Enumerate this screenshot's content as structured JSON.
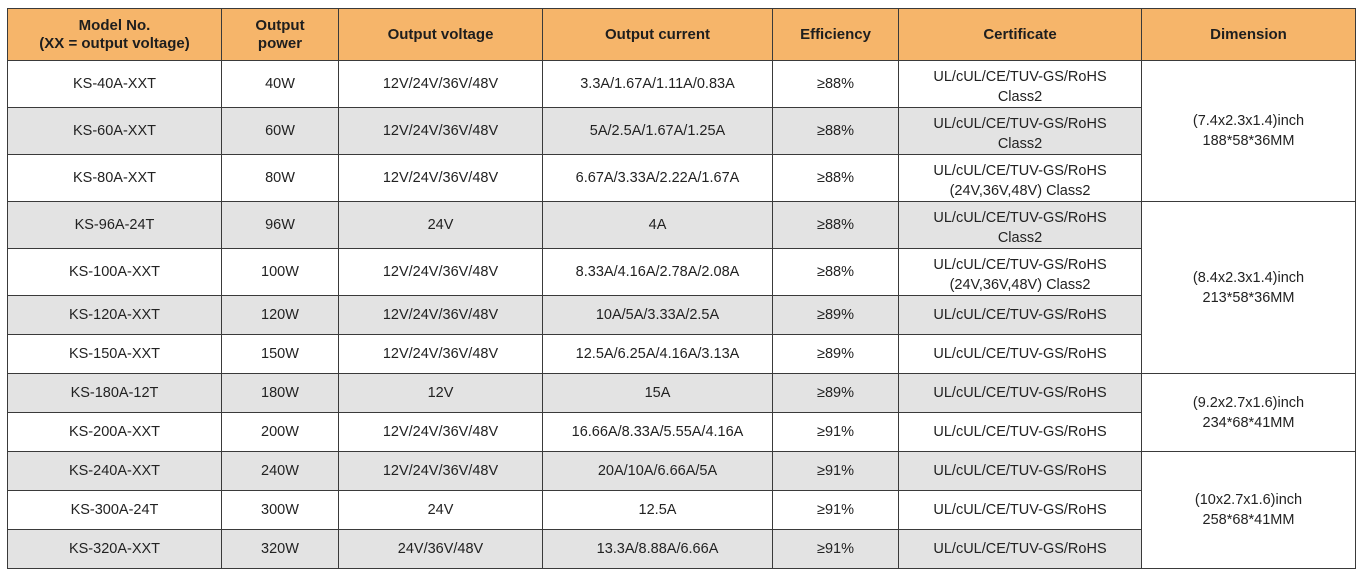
{
  "header": {
    "model_line1": "Model No.",
    "model_line2": "(XX = output voltage)",
    "power_line1": "Output",
    "power_line2": "power",
    "voltage": "Output voltage",
    "current": "Output current",
    "efficiency": "Efficiency",
    "certificate": "Certificate",
    "dimension": "Dimension"
  },
  "colors": {
    "header_bg": "#f6b56a",
    "alt_row_bg": "#e3e3e3"
  },
  "rows": [
    {
      "model": "KS-40A-XXT",
      "power": "40W",
      "voltage": "12V/24V/36V/48V",
      "current": "3.3A/1.67A/1.11A/0.83A",
      "efficiency": "≥88%",
      "cert": "UL/cUL/CE/TUV-GS/RoHS",
      "cert2": "Class2"
    },
    {
      "model": "KS-60A-XXT",
      "power": "60W",
      "voltage": "12V/24V/36V/48V",
      "current": "5A/2.5A/1.67A/1.25A",
      "efficiency": "≥88%",
      "cert": "UL/cUL/CE/TUV-GS/RoHS",
      "cert2": "Class2"
    },
    {
      "model": "KS-80A-XXT",
      "power": "80W",
      "voltage": "12V/24V/36V/48V",
      "current": "6.67A/3.33A/2.22A/1.67A",
      "efficiency": "≥88%",
      "cert": "UL/cUL/CE/TUV-GS/RoHS",
      "cert2": "(24V,36V,48V) Class2"
    },
    {
      "model": "KS-96A-24T",
      "power": "96W",
      "voltage": "24V",
      "current": "4A",
      "efficiency": "≥88%",
      "cert": "UL/cUL/CE/TUV-GS/RoHS",
      "cert2": "Class2"
    },
    {
      "model": "KS-100A-XXT",
      "power": "100W",
      "voltage": "12V/24V/36V/48V",
      "current": "8.33A/4.16A/2.78A/2.08A",
      "efficiency": "≥88%",
      "cert": "UL/cUL/CE/TUV-GS/RoHS",
      "cert2": "(24V,36V,48V) Class2"
    },
    {
      "model": "KS-120A-XXT",
      "power": "120W",
      "voltage": "12V/24V/36V/48V",
      "current": "10A/5A/3.33A/2.5A",
      "efficiency": "≥89%",
      "cert": "UL/cUL/CE/TUV-GS/RoHS"
    },
    {
      "model": "KS-150A-XXT",
      "power": "150W",
      "voltage": "12V/24V/36V/48V",
      "current": "12.5A/6.25A/4.16A/3.13A",
      "efficiency": "≥89%",
      "cert": "UL/cUL/CE/TUV-GS/RoHS"
    },
    {
      "model": "KS-180A-12T",
      "power": "180W",
      "voltage": "12V",
      "current": "15A",
      "efficiency": "≥89%",
      "cert": "UL/cUL/CE/TUV-GS/RoHS"
    },
    {
      "model": "KS-200A-XXT",
      "power": "200W",
      "voltage": "12V/24V/36V/48V",
      "current": "16.66A/8.33A/5.55A/4.16A",
      "efficiency": "≥91%",
      "cert": "UL/cUL/CE/TUV-GS/RoHS"
    },
    {
      "model": "KS-240A-XXT",
      "power": "240W",
      "voltage": "12V/24V/36V/48V",
      "current": "20A/10A/6.66A/5A",
      "efficiency": "≥91%",
      "cert": "UL/cUL/CE/TUV-GS/RoHS"
    },
    {
      "model": "KS-300A-24T",
      "power": "300W",
      "voltage": "24V",
      "current": "12.5A",
      "efficiency": "≥91%",
      "cert": "UL/cUL/CE/TUV-GS/RoHS"
    },
    {
      "model": "KS-320A-XXT",
      "power": "320W",
      "voltage": "24V/36V/48V",
      "current": "13.3A/8.88A/6.66A",
      "efficiency": "≥91%",
      "cert": "UL/cUL/CE/TUV-GS/RoHS"
    }
  ],
  "dimensions": [
    {
      "start": 0,
      "span": 3,
      "inch": "(7.4x2.3x1.4)inch",
      "mm": "188*58*36MM"
    },
    {
      "start": 3,
      "span": 4,
      "inch": "(8.4x2.3x1.4)inch",
      "mm": "213*58*36MM"
    },
    {
      "start": 7,
      "span": 2,
      "inch": "(9.2x2.7x1.6)inch",
      "mm": "234*68*41MM"
    },
    {
      "start": 9,
      "span": 3,
      "inch": "(10x2.7x1.6)inch",
      "mm": "258*68*41MM"
    }
  ]
}
